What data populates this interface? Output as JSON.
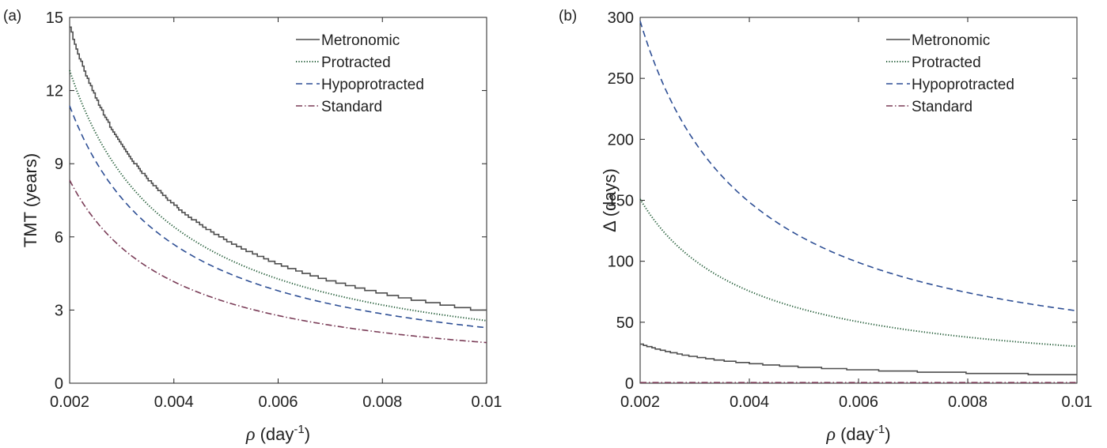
{
  "colors": {
    "Metronomic": "#4d4d4d",
    "Protracted": "#1f5a34",
    "Hypoprotracted": "#2e4f95",
    "Standard": "#7a3c57"
  },
  "chart_data": [
    {
      "type": "line",
      "panel_label": "(a)",
      "xlabel_sym": "ρ",
      "xlabel_unit": " (day",
      "xlabel_sup": "-1",
      "xlabel_close": ")",
      "ylabel": "TMT (years)",
      "xlim": [
        0.002,
        0.01
      ],
      "ylim": [
        0,
        15
      ],
      "xticks": [
        0.002,
        0.004,
        0.006,
        0.008,
        0.01
      ],
      "xtick_labels": [
        "0.002",
        "0.004",
        "0.006",
        "0.008",
        "0.01"
      ],
      "yticks": [
        0,
        3,
        6,
        9,
        12,
        15
      ],
      "ytick_labels": [
        "0",
        "3",
        "6",
        "9",
        "12",
        "15"
      ],
      "legend": "top-right",
      "grid": false,
      "series": [
        {
          "name": "Metronomic",
          "style": "solid",
          "k": 0.02905,
          "step": true,
          "x0": 0.002,
          "y0": 14.5,
          "x1": 0.01,
          "y1": 2.75
        },
        {
          "name": "Protracted",
          "style": "dotted",
          "k": 0.02565,
          "step": false,
          "x0": 0.002,
          "y0": 12.9,
          "x1": 0.01,
          "y1": 2.6
        },
        {
          "name": "Hypoprotracted",
          "style": "dashed",
          "k": 0.02275,
          "step": false,
          "x0": 0.002,
          "y0": 11.4,
          "x1": 0.01,
          "y1": 2.27
        },
        {
          "name": "Standard",
          "style": "dashdot",
          "k": 0.01665,
          "step": false,
          "x0": 0.002,
          "y0": 8.35,
          "x1": 0.01,
          "y1": 1.66
        }
      ]
    },
    {
      "type": "line",
      "panel_label": "(b)",
      "xlabel_sym": "ρ",
      "xlabel_unit": " (day",
      "xlabel_sup": "-1",
      "xlabel_close": ")",
      "ylabel_sym": "Δ",
      "ylabel_rest": " (days)",
      "xlim": [
        0.002,
        0.01
      ],
      "ylim": [
        0,
        300
      ],
      "xticks": [
        0.002,
        0.004,
        0.006,
        0.008,
        0.01
      ],
      "xtick_labels": [
        "0.002",
        "0.004",
        "0.006",
        "0.008",
        "0.01"
      ],
      "yticks": [
        0,
        50,
        100,
        150,
        200,
        250,
        300
      ],
      "ytick_labels": [
        "0",
        "50",
        "100",
        "150",
        "200",
        "250",
        "300"
      ],
      "legend": "top-right",
      "grid": false,
      "series": [
        {
          "name": "Metronomic",
          "style": "solid",
          "k": 0.0636,
          "step": true,
          "x0": 0.002,
          "y0": 32,
          "x1": 0.01,
          "y1": 6.4
        },
        {
          "name": "Protracted",
          "style": "dotted",
          "k": 0.302,
          "step": false,
          "x0": 0.002,
          "y0": 151,
          "x1": 0.01,
          "y1": 30
        },
        {
          "name": "Hypoprotracted",
          "style": "dashed",
          "k": 0.594,
          "step": false,
          "x0": 0.002,
          "y0": 297,
          "x1": 0.01,
          "y1": 59
        },
        {
          "name": "Standard",
          "style": "dashdot",
          "k": 0.0,
          "step": false,
          "x0": 0.002,
          "y0": 0.5,
          "x1": 0.01,
          "y1": 0.5
        }
      ]
    }
  ]
}
